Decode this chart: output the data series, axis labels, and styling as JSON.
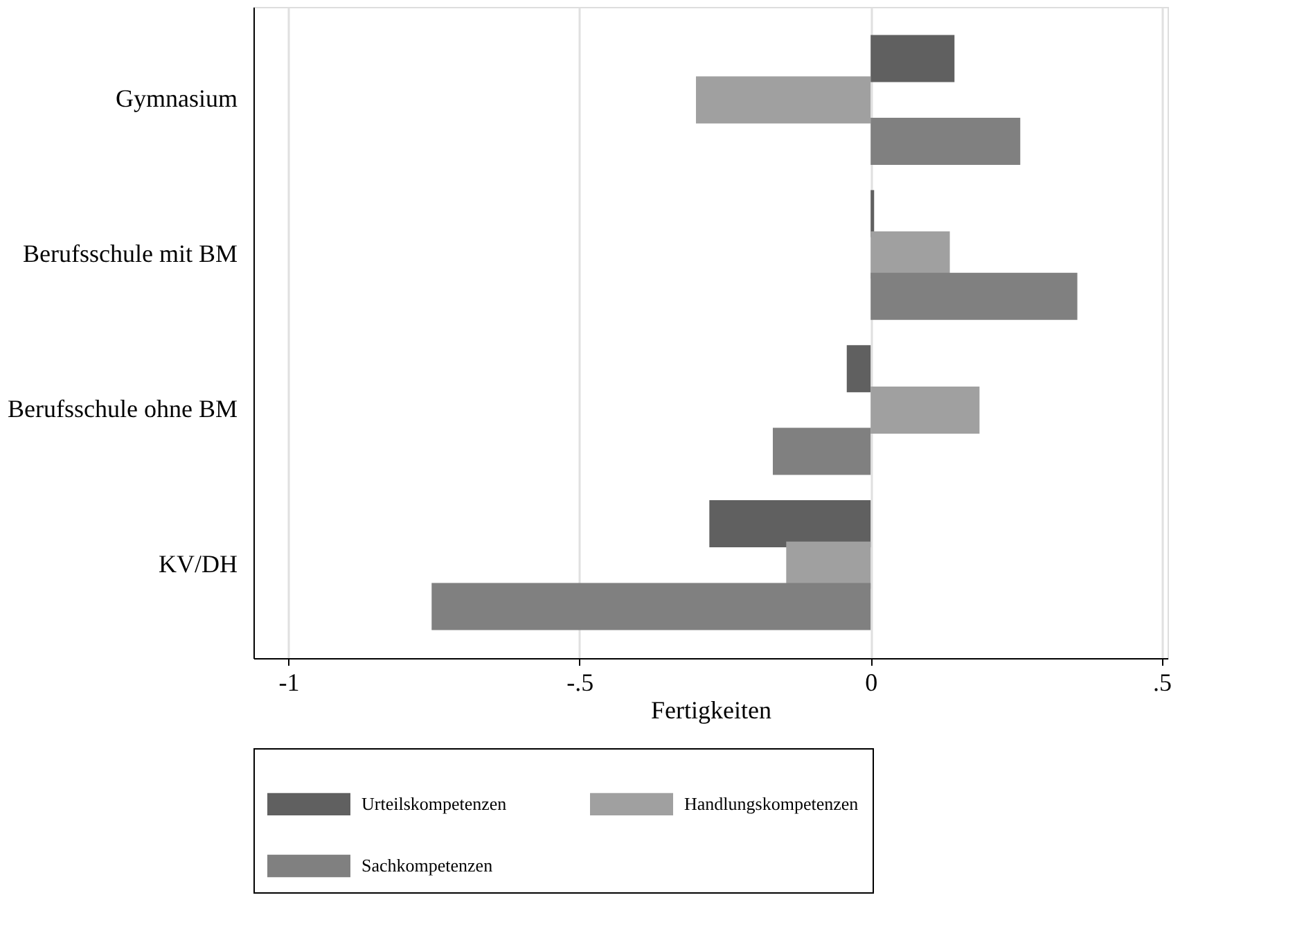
{
  "chart_data": {
    "type": "bar",
    "orientation": "horizontal",
    "xlabel": "Fertigkeiten",
    "categories": [
      "Gymnasium",
      "Berufsschule mit BM",
      "Berufsschule ohne BM",
      "KV/DH"
    ],
    "series": [
      {
        "name": "Urteilskompetenzen",
        "color": "#606060",
        "values": [
          0.144,
          0.006,
          -0.041,
          -0.277
        ]
      },
      {
        "name": "Handlungskompetenzen",
        "color": "#a0a0a0",
        "values": [
          -0.3,
          0.136,
          0.187,
          -0.145
        ]
      },
      {
        "name": "Sachkompetenzen",
        "color": "#808080",
        "values": [
          0.257,
          0.355,
          -0.168,
          -0.754
        ]
      }
    ],
    "xlim": [
      -1.06,
      0.51
    ],
    "xticks": [
      {
        "value": -1,
        "label": "-1"
      },
      {
        "value": -0.5,
        "label": "-.5"
      },
      0,
      {
        "value": 0.5,
        "label": ".5"
      }
    ],
    "grid": "x",
    "legend": "bottom"
  }
}
